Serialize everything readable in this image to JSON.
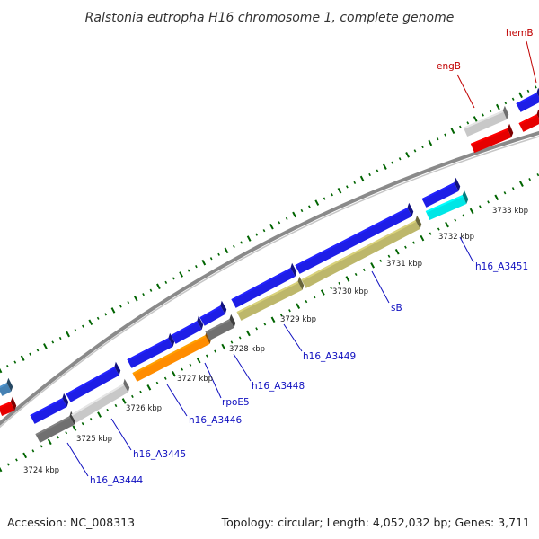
{
  "title": "Ralstonia eutropha H16 chromosome 1, complete genome",
  "footer": {
    "accession": "Accession: NC_008313",
    "summary": "Topology: circular; Length: 4,052,032 bp; Genes: 3,711"
  },
  "colors": {
    "blue": "#1e1ee6",
    "red": "#e60000",
    "gray": "#c8c8c8",
    "darkgray": "#707070",
    "orange": "#ff8c00",
    "khaki": "#bdb76b",
    "cyan": "#00e6e6",
    "steel": "#4682b4",
    "label_blue": "#1010c0",
    "label_red": "#c00000",
    "tick_green": "#006400"
  },
  "kbp_labels": [
    "3724 kbp",
    "3725 kbp",
    "3726 kbp",
    "3727 kbp",
    "3728 kbp",
    "3729 kbp",
    "3730 kbp",
    "3731 kbp",
    "3732 kbp",
    "3733 kbp"
  ],
  "gene_labels": [
    {
      "text": "h16_A3444",
      "color": "label_blue"
    },
    {
      "text": "h16_A3445",
      "color": "label_blue"
    },
    {
      "text": "h16_A3446",
      "color": "label_blue"
    },
    {
      "text": "rpoE5",
      "color": "label_blue"
    },
    {
      "text": "h16_A3448",
      "color": "label_blue"
    },
    {
      "text": "h16_A3449",
      "color": "label_blue"
    },
    {
      "text": "sB",
      "color": "label_blue"
    },
    {
      "text": "h16_A3451",
      "color": "label_blue"
    },
    {
      "text": "engB",
      "color": "label_red"
    },
    {
      "text": "hemB",
      "color": "label_red"
    }
  ]
}
